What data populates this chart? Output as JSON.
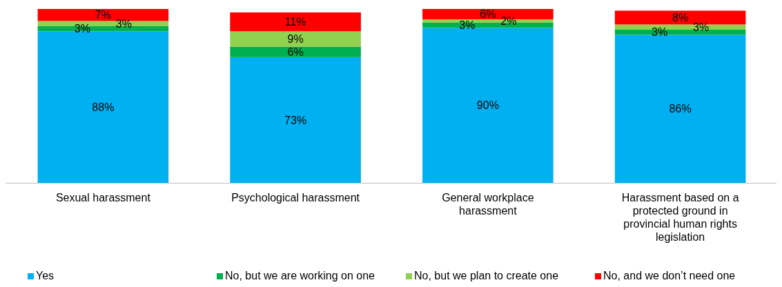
{
  "chart_data": {
    "type": "bar",
    "stacked": true,
    "legend": "bottom",
    "categories": [
      "Sexual harassment",
      "Psychological harassment",
      "General workplace harassment",
      "Harassment based on a protected ground in provincial human rights legislation"
    ],
    "series": [
      {
        "name": "Yes",
        "color": "#00b0f0",
        "values": [
          88,
          73,
          90,
          86
        ],
        "value_labels": [
          "88%",
          "73%",
          "90%",
          "86%"
        ]
      },
      {
        "name": "No, but we are working on one",
        "color": "#00b050",
        "values": [
          3,
          6,
          3,
          3
        ],
        "value_labels": [
          "3%",
          "6%",
          "3%",
          "3%"
        ]
      },
      {
        "name": "No, but we plan to create one",
        "color": "#92d050",
        "values": [
          3,
          9,
          2,
          3
        ],
        "value_labels": [
          "3%",
          "9%",
          "2%",
          "3%"
        ]
      },
      {
        "name": "No, and we don’t need one",
        "color": "#ff0000",
        "values": [
          7,
          11,
          6,
          8
        ],
        "value_labels": [
          "7%",
          "11%",
          "6%",
          "8%"
        ]
      }
    ]
  }
}
